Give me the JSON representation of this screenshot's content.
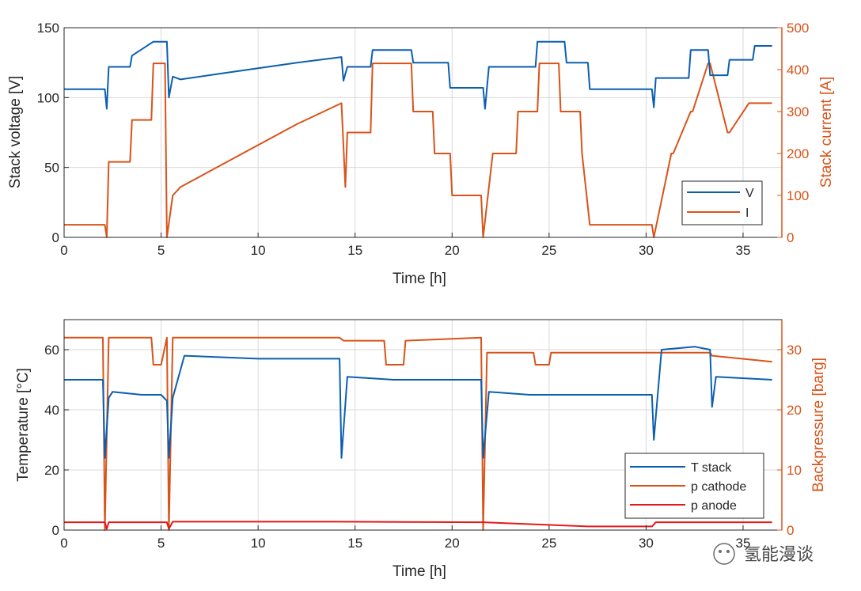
{
  "watermark": {
    "text": "氢能漫谈"
  },
  "colors": {
    "blue": "#0b5fb0",
    "orange": "#d95319",
    "red": "#e21a1a",
    "axis": "#262626",
    "grid": "#d9d9d9"
  },
  "chart_data": [
    {
      "type": "line",
      "title": "",
      "xlabel": "Time [h]",
      "ylabel": "Stack voltage [V]",
      "y2label": "Stack current [A]",
      "xlim": [
        0,
        37
      ],
      "ylim": [
        0,
        150
      ],
      "y2lim": [
        0,
        500
      ],
      "xticks": [
        "0",
        "5",
        "10",
        "15",
        "20",
        "25",
        "30",
        "35"
      ],
      "yticks": [
        "0",
        "50",
        "100",
        "150"
      ],
      "y2ticks": [
        "0",
        "100",
        "200",
        "300",
        "400",
        "500"
      ],
      "grid": true,
      "legend": "bottom-right",
      "series": [
        {
          "name": "V",
          "axis": "left",
          "color": "#0b5fb0",
          "x": [
            0,
            2.1,
            2.2,
            2.3,
            3.4,
            3.5,
            4.6,
            5.3,
            5.4,
            5.6,
            6.0,
            8,
            10,
            12,
            14.3,
            14.4,
            14.6,
            15.8,
            15.9,
            17.9,
            18.0,
            19.8,
            19.9,
            21.6,
            21.7,
            21.9,
            24.3,
            24.4,
            25.8,
            25.9,
            27.0,
            27.1,
            30.3,
            30.4,
            30.5,
            32.2,
            32.3,
            33.2,
            33.3,
            34.2,
            34.3,
            35.5,
            35.6,
            36.5
          ],
          "y": [
            106,
            106,
            92,
            122,
            122,
            130,
            140,
            140,
            100,
            115,
            113,
            117,
            121,
            125,
            129,
            112,
            122,
            122,
            134,
            134,
            125,
            125,
            107,
            107,
            92,
            122,
            122,
            140,
            140,
            125,
            125,
            106,
            106,
            93,
            114,
            114,
            134,
            134,
            116,
            116,
            127,
            127,
            137,
            137
          ]
        },
        {
          "name": "I",
          "axis": "right",
          "color": "#d95319",
          "x": [
            0,
            2.1,
            2.2,
            2.3,
            3.4,
            3.5,
            4.5,
            4.6,
            5.2,
            5.3,
            5.6,
            6.0,
            8,
            10,
            12,
            14.3,
            14.5,
            14.6,
            15.8,
            15.9,
            17.9,
            18.0,
            19.0,
            19.1,
            19.9,
            20.0,
            21.5,
            21.6,
            22.1,
            23.3,
            23.4,
            24.4,
            24.5,
            25.5,
            25.6,
            26.6,
            26.7,
            27.1,
            30.3,
            30.4,
            31.3,
            31.4,
            32.3,
            32.4,
            33.2,
            33.3,
            34.2,
            34.3,
            35.3,
            35.4,
            36.5
          ],
          "y": [
            30,
            30,
            0,
            180,
            180,
            280,
            280,
            415,
            415,
            0,
            100,
            120,
            170,
            220,
            270,
            320,
            120,
            250,
            250,
            415,
            415,
            300,
            300,
            200,
            200,
            100,
            100,
            0,
            200,
            200,
            300,
            300,
            415,
            415,
            300,
            300,
            200,
            30,
            30,
            0,
            200,
            200,
            300,
            300,
            415,
            415,
            250,
            250,
            320,
            320,
            320
          ]
        }
      ]
    },
    {
      "type": "line",
      "title": "",
      "xlabel": "Time [h]",
      "ylabel": "Temperature [°C]",
      "y2label": "Backpressure [barg]",
      "xlim": [
        0,
        37
      ],
      "ylim": [
        0,
        70
      ],
      "y2lim": [
        0,
        35
      ],
      "xticks": [
        "0",
        "5",
        "10",
        "15",
        "20",
        "25",
        "30",
        "35"
      ],
      "yticks": [
        "0",
        "20",
        "40",
        "60"
      ],
      "y2ticks": [
        "0",
        "10",
        "20",
        "30"
      ],
      "grid": true,
      "legend": "bottom-right",
      "series": [
        {
          "name": "T stack",
          "axis": "left",
          "color": "#0b5fb0",
          "x": [
            0,
            2.0,
            2.1,
            2.3,
            2.5,
            4.0,
            5.0,
            5.3,
            5.4,
            5.6,
            6.2,
            10,
            14.2,
            14.3,
            14.6,
            17,
            21.5,
            21.6,
            21.9,
            24,
            27,
            30.3,
            30.4,
            30.8,
            32.5,
            33.3,
            33.4,
            33.6,
            36.5
          ],
          "y": [
            50,
            50,
            24,
            44,
            46,
            45,
            45,
            43,
            24,
            44,
            58,
            57,
            57,
            24,
            51,
            50,
            50,
            24,
            46,
            45,
            45,
            45,
            30,
            60,
            61,
            60,
            41,
            51,
            50
          ]
        },
        {
          "name": "p cathode",
          "axis": "right",
          "color": "#d95319",
          "x": [
            0,
            2.0,
            2.1,
            2.3,
            4.5,
            4.6,
            5.0,
            5.3,
            5.4,
            5.6,
            14.2,
            14.4,
            16.5,
            16.6,
            17.5,
            17.6,
            21.5,
            21.6,
            21.8,
            24.2,
            24.3,
            25.0,
            25.1,
            30.3,
            32.5,
            33.3,
            33.4,
            36.5
          ],
          "y": [
            32,
            32,
            0,
            32,
            32,
            27.5,
            27.5,
            32,
            0,
            32,
            32,
            31.5,
            31.5,
            27.5,
            27.5,
            31.5,
            32,
            0,
            29.5,
            29.5,
            27.5,
            27.5,
            29.5,
            29.5,
            29.5,
            29.5,
            29,
            28
          ]
        },
        {
          "name": "p anode",
          "axis": "right",
          "color": "#e21a1a",
          "x": [
            0,
            2.1,
            2.2,
            2.3,
            5.3,
            5.4,
            5.6,
            14,
            21.6,
            27.0,
            30.3,
            30.5,
            36.5
          ],
          "y": [
            1.3,
            1.3,
            0.2,
            1.3,
            1.3,
            0.2,
            1.4,
            1.4,
            1.3,
            0.6,
            0.6,
            1.3,
            1.3
          ]
        }
      ]
    }
  ]
}
